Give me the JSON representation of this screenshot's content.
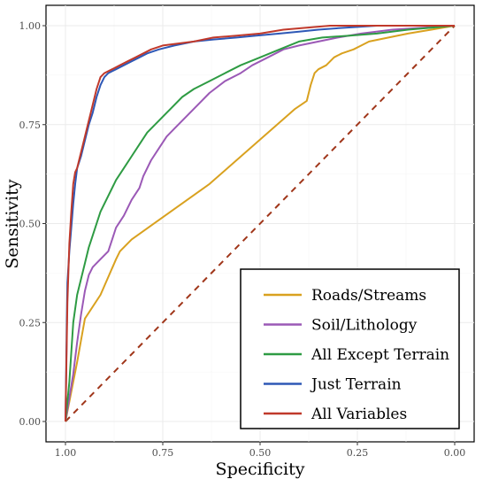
{
  "chart_data": {
    "type": "line",
    "title": "",
    "xlabel": "Specificity",
    "ylabel": "Sensitivity",
    "x_reversed": true,
    "xlim": [
      1.0,
      0.0
    ],
    "ylim": [
      0.0,
      1.0
    ],
    "x_ticks": [
      "1.00",
      "0.75",
      "0.50",
      "0.25",
      "0.00"
    ],
    "y_ticks": [
      "0.00",
      "0.25",
      "0.50",
      "0.75",
      "1.00"
    ],
    "grid": true,
    "legend_position": "bottom-right",
    "diagonal": {
      "from": [
        1.0,
        0.0
      ],
      "to": [
        0.0,
        1.0
      ],
      "style": "dashed",
      "color": "#a0361a"
    },
    "series": [
      {
        "name": "Roads/Streams",
        "color": "#d9a11f",
        "points": [
          [
            1.0,
            0.0
          ],
          [
            0.97,
            0.15
          ],
          [
            0.95,
            0.26
          ],
          [
            0.91,
            0.32
          ],
          [
            0.87,
            0.41
          ],
          [
            0.86,
            0.43
          ],
          [
            0.83,
            0.46
          ],
          [
            0.63,
            0.6
          ],
          [
            0.41,
            0.79
          ],
          [
            0.38,
            0.81
          ],
          [
            0.37,
            0.85
          ],
          [
            0.36,
            0.88
          ],
          [
            0.35,
            0.89
          ],
          [
            0.33,
            0.9
          ],
          [
            0.31,
            0.92
          ],
          [
            0.29,
            0.93
          ],
          [
            0.26,
            0.94
          ],
          [
            0.24,
            0.95
          ],
          [
            0.22,
            0.96
          ],
          [
            0.17,
            0.97
          ],
          [
            0.12,
            0.98
          ],
          [
            0.06,
            0.99
          ],
          [
            0.0,
            1.0
          ]
        ]
      },
      {
        "name": "Soil/Lithology",
        "color": "#9b59b6",
        "points": [
          [
            1.0,
            0.0
          ],
          [
            0.99,
            0.06
          ],
          [
            0.98,
            0.12
          ],
          [
            0.97,
            0.2
          ],
          [
            0.96,
            0.27
          ],
          [
            0.95,
            0.33
          ],
          [
            0.94,
            0.37
          ],
          [
            0.93,
            0.39
          ],
          [
            0.91,
            0.41
          ],
          [
            0.89,
            0.43
          ],
          [
            0.88,
            0.46
          ],
          [
            0.87,
            0.49
          ],
          [
            0.85,
            0.52
          ],
          [
            0.83,
            0.56
          ],
          [
            0.81,
            0.59
          ],
          [
            0.8,
            0.62
          ],
          [
            0.78,
            0.66
          ],
          [
            0.76,
            0.69
          ],
          [
            0.74,
            0.72
          ],
          [
            0.72,
            0.74
          ],
          [
            0.69,
            0.77
          ],
          [
            0.66,
            0.8
          ],
          [
            0.63,
            0.83
          ],
          [
            0.59,
            0.86
          ],
          [
            0.55,
            0.88
          ],
          [
            0.52,
            0.9
          ],
          [
            0.48,
            0.92
          ],
          [
            0.44,
            0.94
          ],
          [
            0.4,
            0.95
          ],
          [
            0.35,
            0.96
          ],
          [
            0.3,
            0.97
          ],
          [
            0.24,
            0.98
          ],
          [
            0.16,
            0.99
          ],
          [
            0.08,
            0.995
          ],
          [
            0.0,
            1.0
          ]
        ]
      },
      {
        "name": "All Except Terrain",
        "color": "#2e9b43",
        "points": [
          [
            1.0,
            0.0
          ],
          [
            0.99,
            0.1
          ],
          [
            0.98,
            0.25
          ],
          [
            0.97,
            0.32
          ],
          [
            0.96,
            0.36
          ],
          [
            0.95,
            0.4
          ],
          [
            0.94,
            0.44
          ],
          [
            0.93,
            0.47
          ],
          [
            0.92,
            0.5
          ],
          [
            0.91,
            0.53
          ],
          [
            0.89,
            0.57
          ],
          [
            0.87,
            0.61
          ],
          [
            0.85,
            0.64
          ],
          [
            0.83,
            0.67
          ],
          [
            0.81,
            0.7
          ],
          [
            0.79,
            0.73
          ],
          [
            0.76,
            0.76
          ],
          [
            0.73,
            0.79
          ],
          [
            0.7,
            0.82
          ],
          [
            0.67,
            0.84
          ],
          [
            0.63,
            0.86
          ],
          [
            0.59,
            0.88
          ],
          [
            0.55,
            0.9
          ],
          [
            0.5,
            0.92
          ],
          [
            0.45,
            0.94
          ],
          [
            0.4,
            0.96
          ],
          [
            0.34,
            0.97
          ],
          [
            0.27,
            0.975
          ],
          [
            0.2,
            0.98
          ],
          [
            0.12,
            0.99
          ],
          [
            0.06,
            0.995
          ],
          [
            0.0,
            1.0
          ]
        ]
      },
      {
        "name": "Just Terrain",
        "color": "#2e58b6",
        "points": [
          [
            1.0,
            0.0
          ],
          [
            0.995,
            0.35
          ],
          [
            0.99,
            0.43
          ],
          [
            0.985,
            0.49
          ],
          [
            0.98,
            0.55
          ],
          [
            0.975,
            0.6
          ],
          [
            0.97,
            0.64
          ],
          [
            0.96,
            0.67
          ],
          [
            0.95,
            0.71
          ],
          [
            0.94,
            0.75
          ],
          [
            0.93,
            0.78
          ],
          [
            0.92,
            0.82
          ],
          [
            0.91,
            0.85
          ],
          [
            0.9,
            0.87
          ],
          [
            0.89,
            0.88
          ],
          [
            0.87,
            0.89
          ],
          [
            0.85,
            0.9
          ],
          [
            0.83,
            0.91
          ],
          [
            0.81,
            0.92
          ],
          [
            0.79,
            0.93
          ],
          [
            0.76,
            0.94
          ],
          [
            0.72,
            0.95
          ],
          [
            0.67,
            0.96
          ],
          [
            0.62,
            0.965
          ],
          [
            0.56,
            0.97
          ],
          [
            0.51,
            0.975
          ],
          [
            0.45,
            0.98
          ],
          [
            0.4,
            0.985
          ],
          [
            0.35,
            0.99
          ],
          [
            0.28,
            0.995
          ],
          [
            0.2,
            1.0
          ],
          [
            0.0,
            1.0
          ]
        ]
      },
      {
        "name": "All Variables",
        "color": "#c0392b",
        "points": [
          [
            1.0,
            0.0
          ],
          [
            0.995,
            0.3
          ],
          [
            0.99,
            0.45
          ],
          [
            0.985,
            0.53
          ],
          [
            0.98,
            0.6
          ],
          [
            0.975,
            0.63
          ],
          [
            0.97,
            0.64
          ],
          [
            0.96,
            0.68
          ],
          [
            0.95,
            0.72
          ],
          [
            0.94,
            0.76
          ],
          [
            0.93,
            0.8
          ],
          [
            0.92,
            0.84
          ],
          [
            0.91,
            0.87
          ],
          [
            0.9,
            0.88
          ],
          [
            0.88,
            0.89
          ],
          [
            0.86,
            0.9
          ],
          [
            0.84,
            0.91
          ],
          [
            0.82,
            0.92
          ],
          [
            0.8,
            0.93
          ],
          [
            0.78,
            0.94
          ],
          [
            0.75,
            0.95
          ],
          [
            0.71,
            0.955
          ],
          [
            0.67,
            0.96
          ],
          [
            0.62,
            0.97
          ],
          [
            0.56,
            0.975
          ],
          [
            0.5,
            0.98
          ],
          [
            0.44,
            0.99
          ],
          [
            0.38,
            0.995
          ],
          [
            0.32,
            1.0
          ],
          [
            0.0,
            1.0
          ]
        ]
      }
    ]
  }
}
